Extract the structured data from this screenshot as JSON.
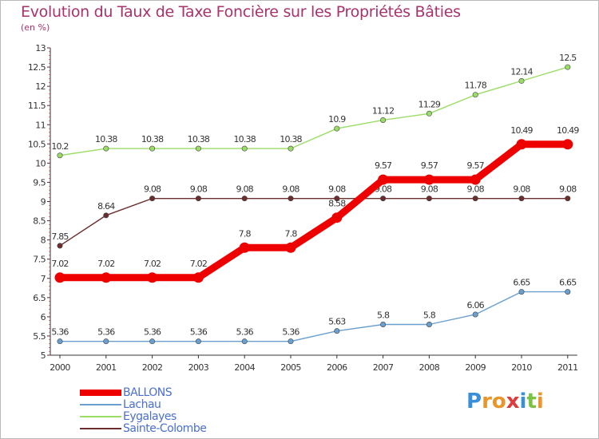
{
  "title": "Evolution du Taux de Taxe Foncière sur les Propriétés Bâties",
  "unit_label": "(en %)",
  "chart_data": {
    "type": "line",
    "title": "Evolution du Taux de Taxe Foncière sur les Propriétés Bâties",
    "ylabel": "(en %)",
    "xlabel": "",
    "categories": [
      "2000",
      "2001",
      "2002",
      "2003",
      "2004",
      "2005",
      "2006",
      "2007",
      "2008",
      "2009",
      "2010",
      "2011"
    ],
    "ylim": [
      5,
      13
    ],
    "yticks": [
      "5",
      "5.5",
      "6",
      "6.5",
      "7",
      "7.5",
      "8",
      "8.5",
      "9",
      "9.5",
      "10",
      "10.5",
      "11",
      "11.5",
      "12",
      "12.5",
      "13"
    ],
    "grid": false,
    "legend_position": "bottom-left",
    "series": [
      {
        "name": "BALLONS",
        "color": "#ee0000",
        "emphasis": true,
        "values": [
          7.02,
          7.02,
          7.02,
          7.02,
          7.8,
          7.8,
          8.58,
          9.57,
          9.57,
          9.57,
          10.49,
          10.49
        ],
        "labels": [
          "7.02",
          "7.02",
          "7.02",
          "7.02",
          "7.8",
          "7.8",
          "8.58",
          "9.57",
          "9.57",
          "9.57",
          "10.49",
          "10.49"
        ]
      },
      {
        "name": "Lachau",
        "color": "#6a9fcf",
        "values": [
          5.36,
          5.36,
          5.36,
          5.36,
          5.36,
          5.36,
          5.63,
          5.8,
          5.8,
          6.06,
          6.65,
          6.65
        ],
        "labels": [
          "5.36",
          "5.36",
          "5.36",
          "5.36",
          "5.36",
          "5.36",
          "5.63",
          "5.8",
          "5.8",
          "6.06",
          "6.65",
          "6.65"
        ]
      },
      {
        "name": "Eygalayes",
        "color": "#99dd66",
        "values": [
          10.2,
          10.38,
          10.38,
          10.38,
          10.38,
          10.38,
          10.9,
          11.12,
          11.29,
          11.78,
          12.14,
          12.5
        ],
        "labels": [
          "10.2",
          "10.38",
          "10.38",
          "10.38",
          "10.38",
          "10.38",
          "10.9",
          "11.12",
          "11.29",
          "11.78",
          "12.14",
          "12.5"
        ]
      },
      {
        "name": "Sainte-Colombe",
        "color": "#6b2d2d",
        "values": [
          7.85,
          8.64,
          9.08,
          9.08,
          9.08,
          9.08,
          9.08,
          9.08,
          9.08,
          9.08,
          9.08,
          9.08
        ],
        "labels": [
          "7.85",
          "8.64",
          "9.08",
          "9.08",
          "9.08",
          "9.08",
          "9.08",
          "9.08",
          "9.08",
          "9.08",
          "9.08",
          "9.08"
        ]
      }
    ]
  },
  "legend": [
    {
      "label": "BALLONS",
      "color": "#ee0000"
    },
    {
      "label": "Lachau",
      "color": "#6a9fcf"
    },
    {
      "label": "Eygalayes",
      "color": "#99dd66"
    },
    {
      "label": "Sainte-Colombe",
      "color": "#6b2d2d"
    }
  ],
  "logo": {
    "letters": [
      "P",
      "r",
      "o",
      "x",
      "i",
      "t",
      "i"
    ],
    "colors": [
      "#3a8fd9",
      "#e8962a",
      "#e8962a",
      "#e03a3a",
      "#3a8fd9",
      "#7cc242",
      "#e8962a"
    ]
  }
}
